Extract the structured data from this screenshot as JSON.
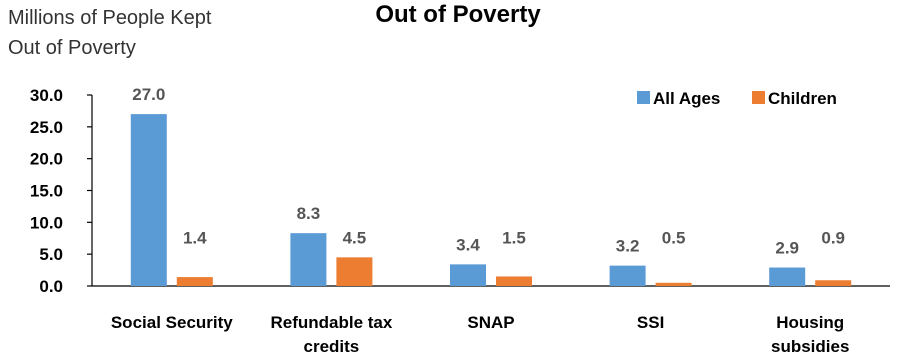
{
  "chart_data": {
    "type": "bar",
    "title": "Out of Poverty",
    "ylabel_lines": [
      "Millions of People Kept",
      "Out of Poverty"
    ],
    "categories": [
      [
        "Social Security"
      ],
      [
        "Refundable tax",
        "credits"
      ],
      [
        "SNAP"
      ],
      [
        "SSI"
      ],
      [
        "Housing",
        "subsidies"
      ]
    ],
    "series": [
      {
        "name": "All Ages",
        "color": "#5B9BD5",
        "values": [
          27.0,
          8.3,
          3.4,
          3.2,
          2.9
        ]
      },
      {
        "name": "Children",
        "color": "#ED7D31",
        "values": [
          1.4,
          4.5,
          1.5,
          0.5,
          0.9
        ]
      }
    ],
    "data_labels": [
      [
        "27.0",
        "8.3",
        "3.4",
        "3.2",
        "2.9"
      ],
      [
        "1.4",
        "4.5",
        "1.5",
        "0.5",
        "0.9"
      ]
    ],
    "yticks": [
      "0.0",
      "5.0",
      "10.0",
      "15.0",
      "20.0",
      "25.0",
      "30.0"
    ],
    "ylim": [
      0,
      30
    ],
    "grid": false,
    "legend": "top-right"
  }
}
